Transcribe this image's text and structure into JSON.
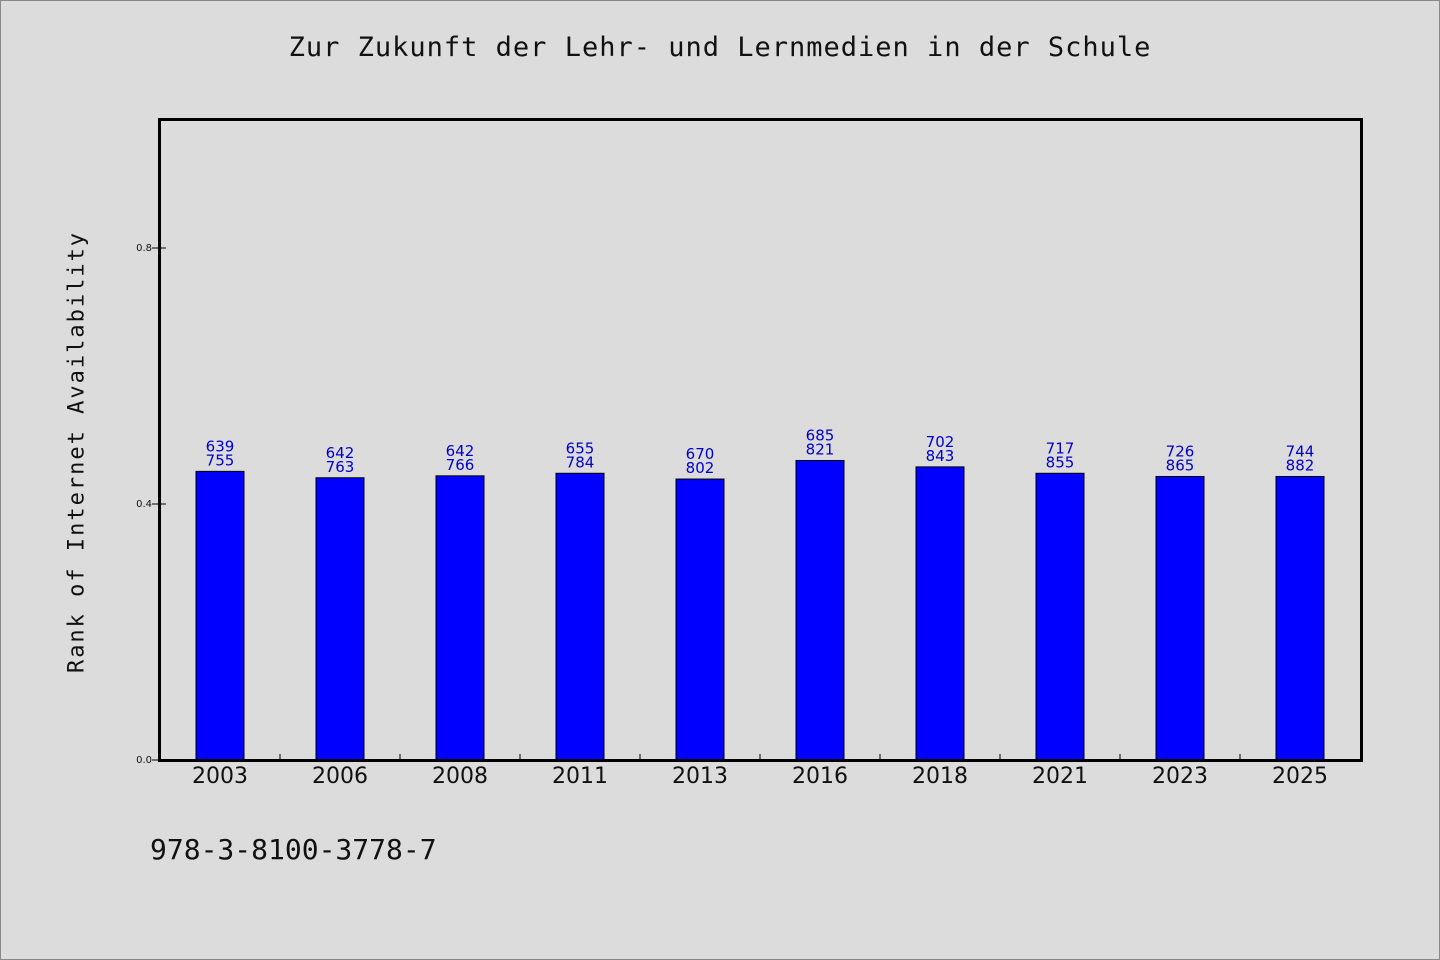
{
  "chart_data": {
    "type": "bar",
    "title": "Zur Zukunft der Lehr- und Lernmedien in der Schule",
    "xlabel": "",
    "ylabel": "Rank of Internet Availability",
    "ylim": [
      0.0,
      1.0
    ],
    "yticks": [
      0.0,
      0.4,
      0.8
    ],
    "ytick_labels": [
      "0.0",
      "0.4",
      "0.8"
    ],
    "grid": false,
    "bar_color": "#0000ff",
    "label_color": "#0000cc",
    "categories": [
      "2003",
      "2006",
      "2008",
      "2011",
      "2013",
      "2016",
      "2018",
      "2021",
      "2023",
      "2025"
    ],
    "values": [
      0.451,
      0.441,
      0.444,
      0.448,
      0.439,
      0.468,
      0.458,
      0.448,
      0.443,
      0.443
    ],
    "annotations_top": [
      "639",
      "642",
      "642",
      "655",
      "670",
      "685",
      "702",
      "717",
      "726",
      "744"
    ],
    "annotations_bottom": [
      "755",
      "763",
      "766",
      "784",
      "802",
      "821",
      "843",
      "855",
      "865",
      "882"
    ]
  },
  "footer": {
    "code": "978-3-8100-3778-7"
  }
}
